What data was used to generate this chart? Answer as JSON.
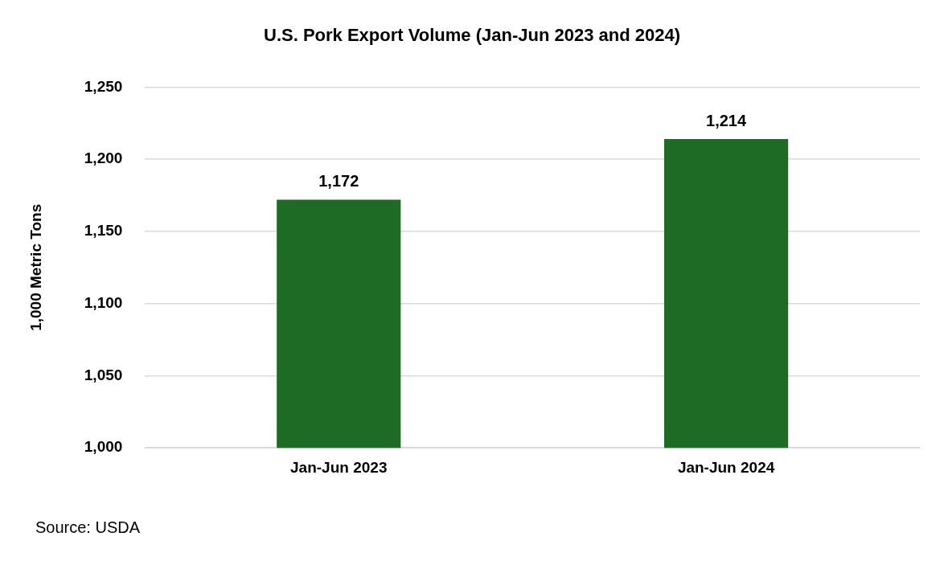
{
  "chart_data": {
    "type": "bar",
    "title": "U.S. Pork Export Volume (Jan-Jun 2023 and 2024)",
    "ylabel": "1,000 Metric Tons",
    "categories": [
      "Jan-Jun 2023",
      "Jan-Jun 2024"
    ],
    "values": [
      1172,
      1214
    ],
    "color": "#1e6b25",
    "ylim": [
      1000,
      1250
    ],
    "yticks": [
      {
        "value": 1000,
        "label": "1,000"
      },
      {
        "value": 1050,
        "label": "1,050"
      },
      {
        "value": 1100,
        "label": "1,100"
      },
      {
        "value": 1150,
        "label": "1,150"
      },
      {
        "value": 1200,
        "label": "1,200"
      },
      {
        "value": 1250,
        "label": "1,250"
      }
    ],
    "value_labels": [
      "1,172",
      "1,214"
    ],
    "grid": "y",
    "legend": false,
    "annotations": [
      "Source: USDA"
    ]
  }
}
